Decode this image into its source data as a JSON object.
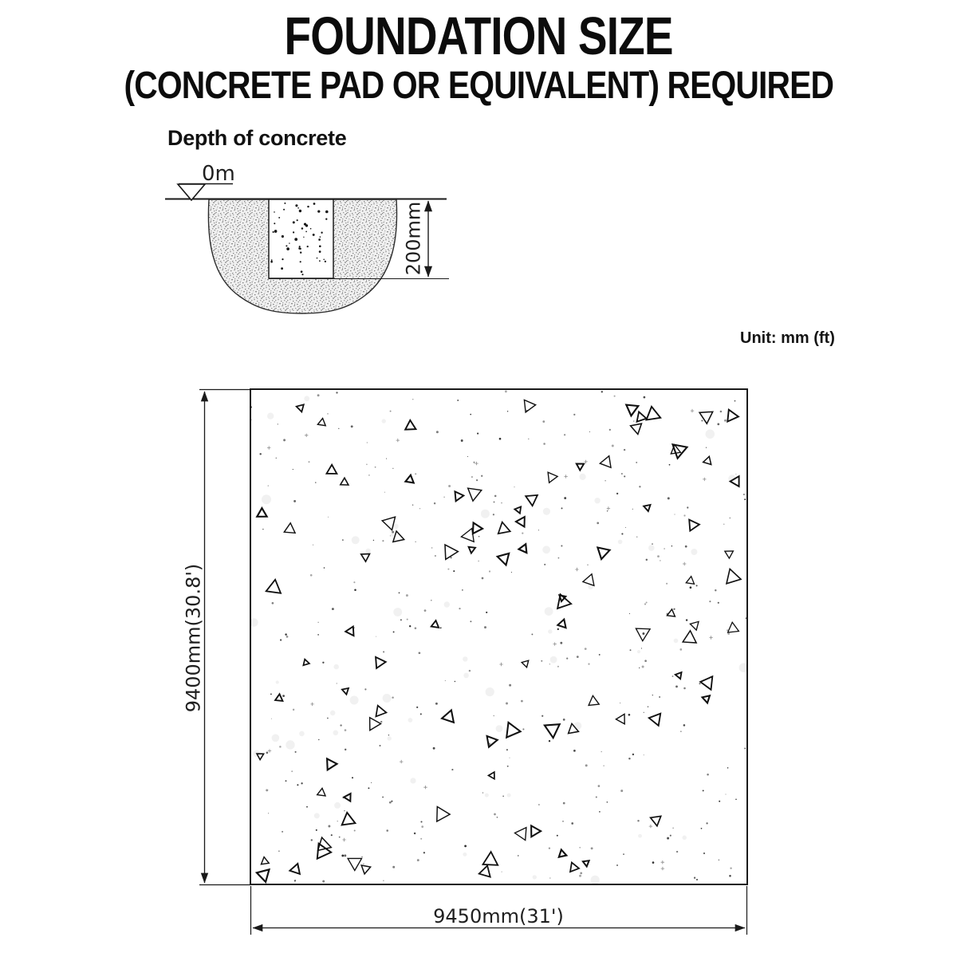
{
  "title": "FOUNDATION SIZE",
  "subtitle": "(CONCRETE PAD OR EQUIVALENT) REQUIRED",
  "depth_section": {
    "heading": "Depth of concrete",
    "ground_level_label": "0m",
    "depth_label": "200mm"
  },
  "unit_note": "Unit: mm (ft)",
  "plan": {
    "height_label": "9400mm(30.8')",
    "width_label": "9450mm(31')"
  },
  "colors": {
    "ink": "#1a1a1a",
    "background": "#ffffff"
  }
}
